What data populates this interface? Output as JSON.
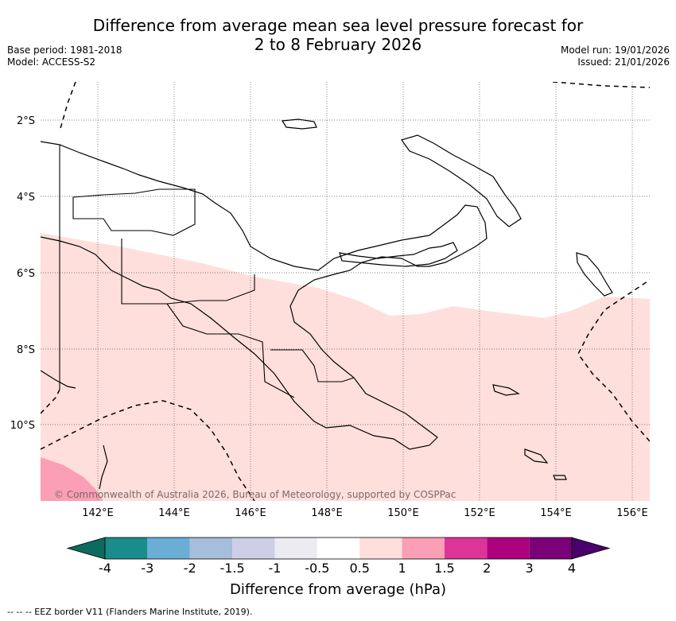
{
  "title_line1": "Difference from average mean sea level pressure forecast for",
  "title_line2": "2 to 8 February 2026",
  "base_period": "Base period: 1981-2018",
  "model": "Model: ACCESS-S2",
  "model_run": "Model run: 19/01/2026",
  "issued": "Issued: 21/01/2026",
  "lat_labels": [
    "2°S",
    "4°S",
    "6°S",
    "8°S",
    "10°S"
  ],
  "lon_labels": [
    "142°E",
    "144°E",
    "146°E",
    "148°E",
    "150°E",
    "152°E",
    "154°E",
    "156°E"
  ],
  "copyright": "© Commonwealth of Australia 2026, Bureau of Meteorology, supported by COSPPac",
  "colorbar": {
    "label": "Difference from average (hPa)",
    "ticks": [
      "-4",
      "-3",
      "-2",
      "-1.5",
      "-1",
      "-0.5",
      "0.5",
      "1",
      "1.5",
      "2",
      "3",
      "4"
    ],
    "colors": [
      "#1a8c8c",
      "#6aaed6",
      "#a6bddb",
      "#cccfe6",
      "#ecebf2",
      "#ffffff",
      "#ffdfdc",
      "#fa9fb5",
      "#dd3497",
      "#ae017e",
      "#7a0177"
    ],
    "under_color": "#0c6b5e",
    "over_color": "#49006a"
  },
  "fill_colors": {
    "light_pink": "#ffdfdc",
    "pink": "#fa9fb5"
  },
  "footnote": "--  --  -- EEZ border V11 (Flanders Marine Institute, 2019)."
}
